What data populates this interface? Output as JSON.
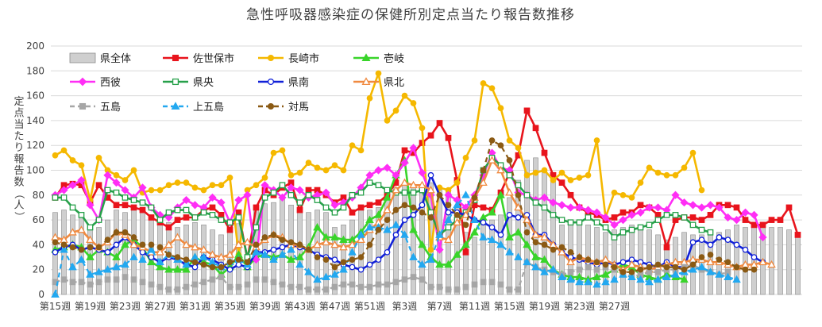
{
  "chart_data": {
    "type": "bar+line",
    "title": "急性呼吸器感染症の保健所別定点当たり報告数推移",
    "ylabel": "定点当たり報告数（人）",
    "ylim": [
      0,
      200
    ],
    "yticks": [
      0,
      20,
      40,
      60,
      80,
      100,
      120,
      140,
      160,
      180,
      200
    ],
    "x_tick_labels": [
      "第15週",
      "第19週",
      "第23週",
      "第27週",
      "第31週",
      "第35週",
      "第39週",
      "第43週",
      "第47週",
      "第51週",
      "第3週",
      "第7週",
      "第11週",
      "第15週",
      "第19週",
      "第23週",
      "第27週"
    ],
    "grid": true,
    "legend_placement": "top-left (inside)",
    "colors": {
      "県全体": "#c8c8c8",
      "佐世保市": "#e8141c",
      "長崎市": "#f5b800",
      "壱岐": "#39d42a",
      "西彼": "#ff2ef5",
      "県央": "#27a04a",
      "県南": "#1020d8",
      "県北": "#f08a40",
      "五島": "#a6a6a6",
      "上五島": "#22a8f0",
      "対馬": "#8b5a14"
    },
    "legend": [
      "県全体",
      "佐世保市",
      "長崎市",
      "壱岐",
      "西彼",
      "県央",
      "県南",
      "県北",
      "五島",
      "上五島",
      "対馬"
    ],
    "bars": {
      "name": "県全体",
      "values": [
        66,
        68,
        64,
        62,
        56,
        54,
        60,
        68,
        66,
        68,
        66,
        62,
        60,
        58,
        54,
        56,
        58,
        56,
        52,
        48,
        54,
        57,
        32,
        68,
        73,
        74,
        78,
        72,
        68,
        66,
        68,
        66,
        54,
        56,
        60,
        68,
        68,
        70,
        84,
        86,
        90,
        88,
        88,
        90,
        86,
        84,
        72,
        50,
        46,
        56,
        60,
        64,
        78,
        92,
        108,
        110,
        100,
        92,
        56,
        56,
        60,
        56,
        54,
        50,
        52,
        54,
        56,
        54,
        52,
        48,
        44,
        46,
        50,
        48,
        48,
        50,
        50,
        52,
        56,
        54,
        58,
        56,
        54,
        54,
        52,
        48
      ]
    },
    "series": [
      {
        "name": "佐世保市",
        "style": "solid-square",
        "values": [
          78,
          88,
          89,
          88,
          74,
          88,
          78,
          72,
          72,
          70,
          68,
          62,
          58,
          54,
          60,
          62,
          62,
          68,
          70,
          64,
          52,
          66,
          28,
          70,
          84,
          80,
          86,
          90,
          68,
          84,
          84,
          80,
          74,
          78,
          66,
          70,
          72,
          74,
          80,
          90,
          116,
          114,
          122,
          128,
          138,
          126,
          92,
          34,
          72,
          70,
          68,
          82,
          98,
          112,
          148,
          134,
          114,
          96,
          90,
          80,
          70,
          66,
          64,
          60,
          62,
          66,
          66,
          72,
          70,
          64,
          38,
          60,
          62,
          62,
          60,
          64,
          72,
          72,
          70,
          60,
          56,
          56,
          60,
          60,
          70,
          48
        ]
      },
      {
        "name": "長崎市",
        "style": "solid-circle",
        "values": [
          112,
          116,
          108,
          104,
          76,
          110,
          100,
          96,
          92,
          100,
          82,
          84,
          84,
          88,
          90,
          90,
          86,
          84,
          88,
          88,
          94,
          32,
          84,
          88,
          94,
          114,
          116,
          96,
          98,
          106,
          102,
          100,
          104,
          100,
          120,
          116,
          158,
          178,
          140,
          148,
          160,
          154,
          134,
          36,
          86,
          84,
          90,
          110,
          124,
          170,
          166,
          150,
          124,
          118,
          96,
          98,
          100,
          92,
          98,
          92,
          94,
          96,
          124,
          62,
          82,
          80,
          78,
          90,
          102,
          98,
          96,
          96,
          102,
          114,
          84
        ]
      },
      {
        "name": "壱岐",
        "style": "solid-triangle",
        "values": [
          36,
          38,
          40,
          38,
          30,
          36,
          34,
          30,
          40,
          44,
          38,
          26,
          22,
          20,
          20,
          20,
          30,
          26,
          24,
          16,
          22,
          32,
          22,
          30,
          32,
          30,
          32,
          28,
          30,
          38,
          54,
          46,
          46,
          44,
          44,
          50,
          60,
          64,
          78,
          96,
          108,
          52,
          40,
          30,
          24,
          24,
          32,
          40,
          50,
          62,
          66,
          80,
          46,
          50,
          40,
          30,
          28,
          20,
          16,
          14,
          14,
          12,
          14,
          16,
          20,
          24,
          22,
          16,
          14,
          12,
          16,
          14,
          12
        ]
      },
      {
        "name": "西彼",
        "style": "solid-diamond",
        "values": [
          80,
          84,
          88,
          92,
          72,
          60,
          96,
          90,
          84,
          78,
          86,
          70,
          64,
          62,
          70,
          76,
          72,
          70,
          78,
          74,
          58,
          76,
          80,
          28,
          88,
          84,
          78,
          86,
          84,
          78,
          80,
          82,
          72,
          74,
          78,
          86,
          96,
          100,
          102,
          96,
          106,
          118,
          98,
          80,
          36,
          80,
          76,
          70,
          80,
          96,
          114,
          102,
          100,
          82,
          80,
          76,
          78,
          74,
          72,
          70,
          70,
          68,
          66,
          62,
          56,
          60,
          64,
          66,
          70,
          70,
          68,
          80,
          74,
          72,
          70,
          72,
          70,
          62,
          60,
          66,
          64,
          46
        ]
      },
      {
        "name": "県央",
        "style": "hollow-square",
        "values": [
          78,
          78,
          70,
          64,
          54,
          60,
          84,
          82,
          78,
          76,
          74,
          70,
          60,
          66,
          68,
          68,
          62,
          66,
          64,
          60,
          58,
          62,
          30,
          54,
          78,
          82,
          88,
          80,
          74,
          80,
          76,
          70,
          66,
          70,
          80,
          82,
          90,
          88,
          84,
          82,
          82,
          82,
          84,
          66,
          48,
          54,
          60,
          66,
          76,
          100,
          110,
          104,
          96,
          88,
          80,
          74,
          70,
          64,
          60,
          58,
          58,
          62,
          58,
          54,
          46,
          50,
          52,
          54,
          56,
          60,
          64,
          64,
          62,
          56,
          52,
          50
        ]
      },
      {
        "name": "県南",
        "style": "hollow-circle",
        "values": [
          34,
          38,
          40,
          36,
          38,
          36,
          34,
          40,
          46,
          40,
          34,
          30,
          26,
          30,
          28,
          24,
          22,
          30,
          28,
          24,
          20,
          24,
          22,
          34,
          34,
          36,
          38,
          40,
          38,
          36,
          32,
          30,
          28,
          24,
          22,
          20,
          24,
          28,
          34,
          48,
          60,
          64,
          72,
          96,
          80,
          66,
          66,
          64,
          60,
          58,
          54,
          48,
          64,
          62,
          64,
          48,
          48,
          40,
          34,
          30,
          28,
          26,
          24,
          26,
          24,
          26,
          28,
          26,
          24,
          22,
          26,
          22,
          22,
          42,
          44,
          40,
          46,
          44,
          40,
          36,
          30,
          26
        ]
      },
      {
        "name": "県北",
        "style": "hollow-triangle",
        "values": [
          46,
          44,
          50,
          52,
          44,
          38,
          42,
          50,
          48,
          40,
          38,
          34,
          34,
          40,
          46,
          40,
          38,
          36,
          32,
          30,
          32,
          40,
          42,
          38,
          44,
          48,
          46,
          40,
          40,
          36,
          40,
          42,
          40,
          38,
          40,
          44,
          52,
          58,
          68,
          84,
          90,
          88,
          88,
          84,
          46,
          44,
          58,
          64,
          78,
          90,
          108,
          100,
          82,
          70,
          60,
          48,
          46,
          40,
          34,
          26,
          30,
          28,
          26,
          28,
          24,
          20,
          24,
          22,
          20,
          22,
          24,
          26,
          26,
          28,
          28,
          26,
          26,
          24,
          22,
          24,
          24,
          26,
          24
        ]
      },
      {
        "name": "五島",
        "style": "dashed-square",
        "values": [
          10,
          12,
          10,
          10,
          8,
          10,
          12,
          12,
          14,
          12,
          10,
          8,
          6,
          4,
          4,
          6,
          8,
          10,
          12,
          14,
          6,
          6,
          8,
          12,
          12,
          10,
          8,
          6,
          6,
          4,
          4,
          4,
          6,
          8,
          8,
          6,
          6,
          8,
          8,
          10,
          12,
          14,
          12,
          6,
          6,
          4,
          4,
          6,
          8,
          10,
          10,
          8,
          4,
          4,
          26,
          22,
          20,
          18,
          16,
          18,
          20,
          22,
          20,
          22,
          20,
          16,
          14,
          16,
          18,
          18,
          20,
          20,
          22,
          24,
          20,
          18,
          16,
          18
        ]
      },
      {
        "name": "上五島",
        "style": "dashed-triangle",
        "values": [
          0,
          36,
          22,
          28,
          16,
          18,
          20,
          22,
          24,
          30,
          28,
          36,
          26,
          32,
          28,
          24,
          30,
          30,
          26,
          22,
          26,
          28,
          24,
          34,
          32,
          28,
          32,
          36,
          24,
          18,
          12,
          14,
          16,
          20,
          34,
          48,
          54,
          54,
          52,
          56,
          48,
          30,
          24,
          28,
          48,
          60,
          72,
          80,
          60,
          46,
          44,
          40,
          34,
          30,
          26,
          22,
          18,
          20,
          14,
          12,
          10,
          10,
          8,
          10,
          12,
          16,
          14,
          12,
          10,
          12,
          14,
          16,
          18,
          20,
          22,
          18,
          16,
          14,
          12
        ]
      },
      {
        "name": "対馬",
        "style": "dashed-circle",
        "values": [
          42,
          40,
          38,
          36,
          38,
          38,
          44,
          50,
          50,
          46,
          40,
          40,
          38,
          32,
          30,
          28,
          26,
          24,
          22,
          22,
          26,
          28,
          26,
          40,
          46,
          48,
          44,
          42,
          40,
          36,
          30,
          28,
          22,
          26,
          28,
          30,
          40,
          52,
          60,
          68,
          72,
          70,
          66,
          62,
          80,
          72,
          64,
          56,
          78,
          100,
          124,
          120,
          108,
          80,
          50,
          42,
          40,
          36,
          38,
          34,
          30,
          28,
          26,
          24,
          22,
          18,
          18,
          20,
          22,
          24,
          22,
          22,
          20,
          24,
          30,
          32,
          28,
          26,
          22,
          20,
          20
        ]
      }
    ]
  }
}
